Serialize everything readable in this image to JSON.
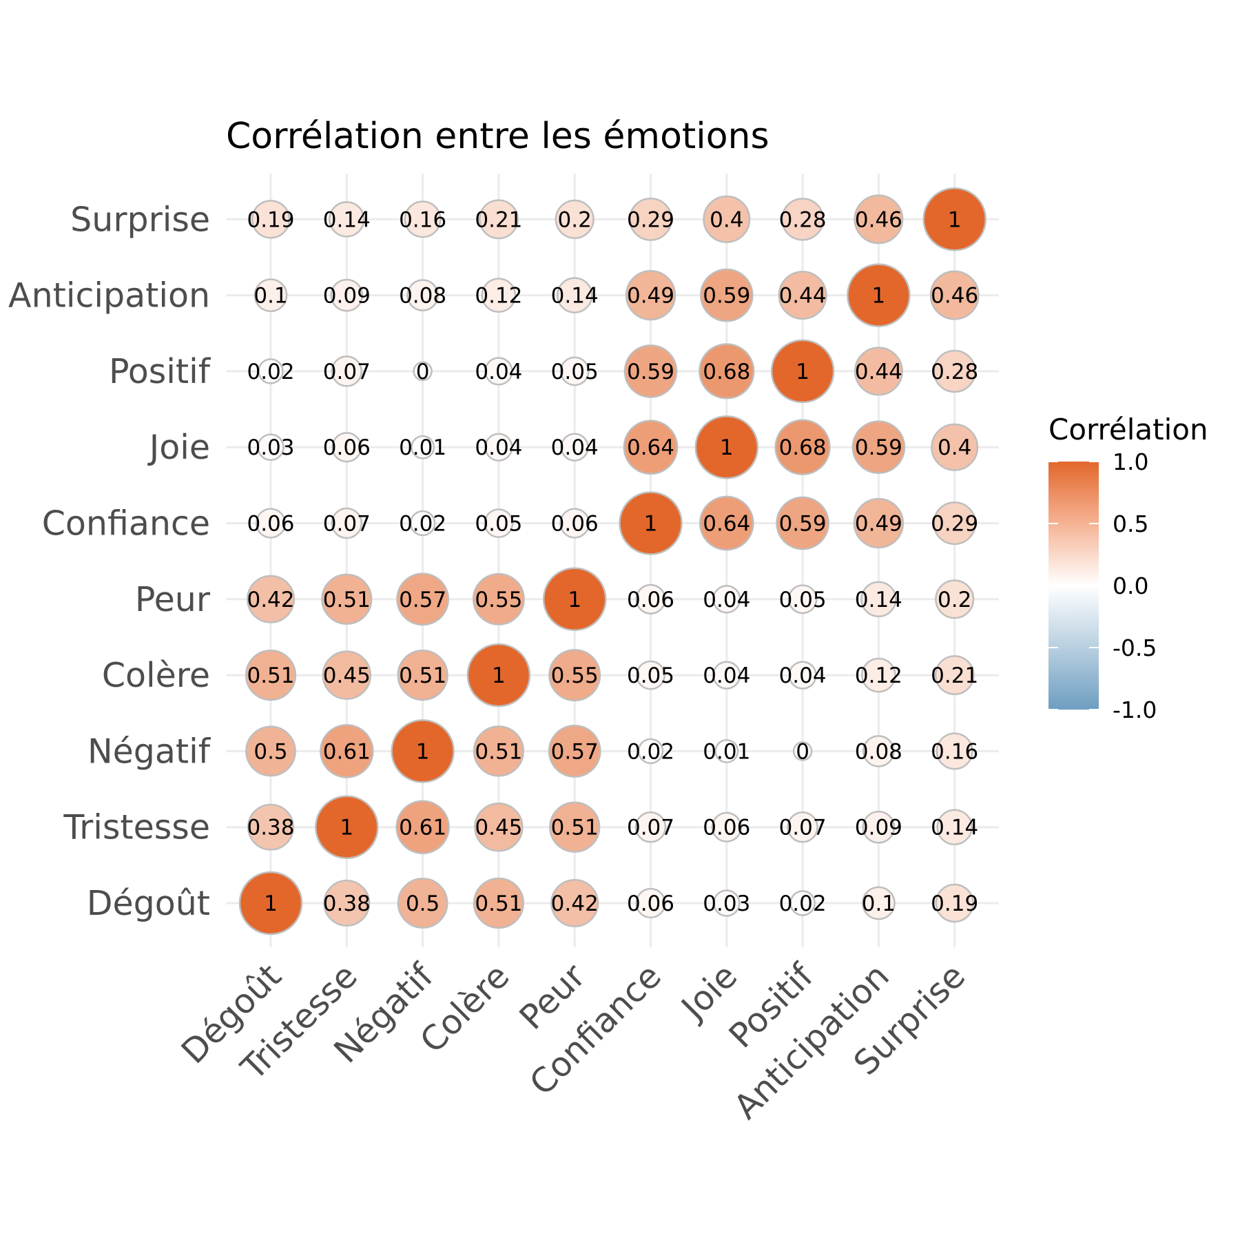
{
  "chart_data": {
    "type": "heatmap",
    "title": "Corrélation entre les émotions",
    "categories": [
      "Dégoût",
      "Tristesse",
      "Négatif",
      "Colère",
      "Peur",
      "Confiance",
      "Joie",
      "Positif",
      "Anticipation",
      "Surprise"
    ],
    "matrix": [
      [
        1,
        0.38,
        0.5,
        0.51,
        0.42,
        0.06,
        0.03,
        0.02,
        0.1,
        0.19
      ],
      [
        0.38,
        1,
        0.61,
        0.45,
        0.51,
        0.07,
        0.06,
        0.07,
        0.09,
        0.14
      ],
      [
        0.5,
        0.61,
        1,
        0.51,
        0.57,
        0.02,
        0.01,
        0,
        0.08,
        0.16
      ],
      [
        0.51,
        0.45,
        0.51,
        1,
        0.55,
        0.05,
        0.04,
        0.04,
        0.12,
        0.21
      ],
      [
        0.42,
        0.51,
        0.57,
        0.55,
        1,
        0.06,
        0.04,
        0.05,
        0.14,
        0.2
      ],
      [
        0.06,
        0.07,
        0.02,
        0.05,
        0.06,
        1,
        0.64,
        0.59,
        0.49,
        0.29
      ],
      [
        0.03,
        0.06,
        0.01,
        0.04,
        0.04,
        0.64,
        1,
        0.68,
        0.59,
        0.4
      ],
      [
        0.02,
        0.07,
        0,
        0.04,
        0.05,
        0.59,
        0.68,
        1,
        0.44,
        0.28
      ],
      [
        0.1,
        0.09,
        0.08,
        0.12,
        0.14,
        0.49,
        0.59,
        0.44,
        1,
        0.46
      ],
      [
        0.19,
        0.14,
        0.16,
        0.21,
        0.2,
        0.29,
        0.4,
        0.28,
        0.46,
        1
      ]
    ],
    "legend": {
      "title": "Corrélation",
      "ticks": [
        "1.0",
        "0.5",
        "0.0",
        "-0.5",
        "-1.0"
      ],
      "tick_values": [
        1,
        0.5,
        0,
        -0.5,
        -1
      ],
      "placement": "right"
    },
    "colors": {
      "high": "#E3672B",
      "mid": "#FFFFFF",
      "low": "#6D9EC1",
      "circle_stroke": "#BEBEBE",
      "grid": "#EBEBEB"
    },
    "value_range": [
      -1,
      1
    ],
    "grid": true
  }
}
